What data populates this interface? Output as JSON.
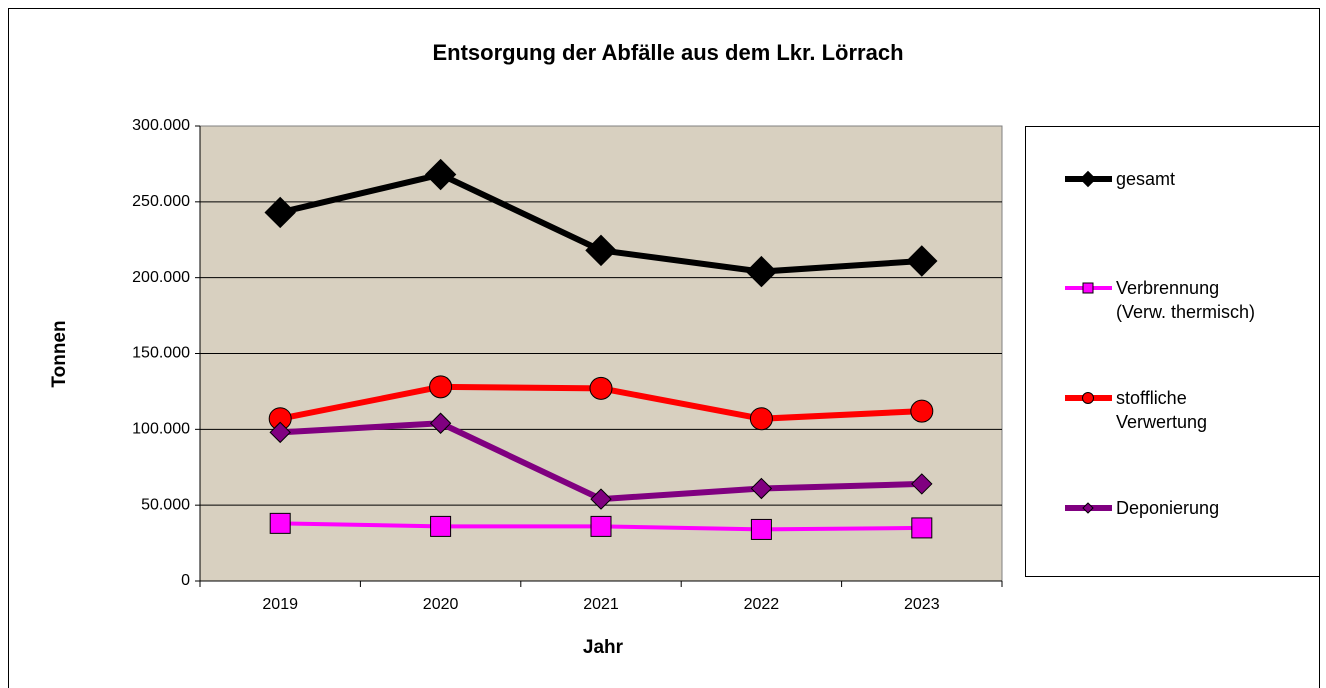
{
  "chart_data": {
    "type": "line",
    "title": "Entsorgung der Abfälle aus dem Lkr. Lörrach",
    "x_label": "Jahr",
    "y_label": "Tonnen",
    "categories": [
      "2019",
      "2020",
      "2021",
      "2022",
      "2023"
    ],
    "ylim": [
      0,
      300000
    ],
    "yticks": [
      0,
      {
        "value": 50000,
        "label": "50.000"
      },
      {
        "value": 100000,
        "label": "100.000"
      },
      {
        "value": 150000,
        "label": "150.000"
      },
      {
        "value": 200000,
        "label": "200.000"
      },
      {
        "value": 250000,
        "label": "250.000"
      },
      {
        "value": 300000,
        "label": "300.000"
      }
    ],
    "grid": true,
    "legend": "right",
    "series": [
      {
        "name": "gesamt",
        "color": "#000000",
        "marker": "diamond",
        "values": [
          243000,
          268000,
          218000,
          204000,
          211000
        ]
      },
      {
        "name": "Verbrennung (Verw. thermisch)",
        "color": "#ff00ff",
        "marker": "square",
        "values": [
          38000,
          36000,
          36000,
          34000,
          35000
        ]
      },
      {
        "name": "stoffliche Verwertung",
        "color": "#ff0000",
        "marker": "circle",
        "values": [
          107000,
          128000,
          127000,
          107000,
          112000
        ]
      },
      {
        "name": "Deponierung",
        "color": "#800080",
        "marker": "diamond",
        "values": [
          98000,
          104000,
          54000,
          61000,
          64000
        ]
      }
    ]
  }
}
